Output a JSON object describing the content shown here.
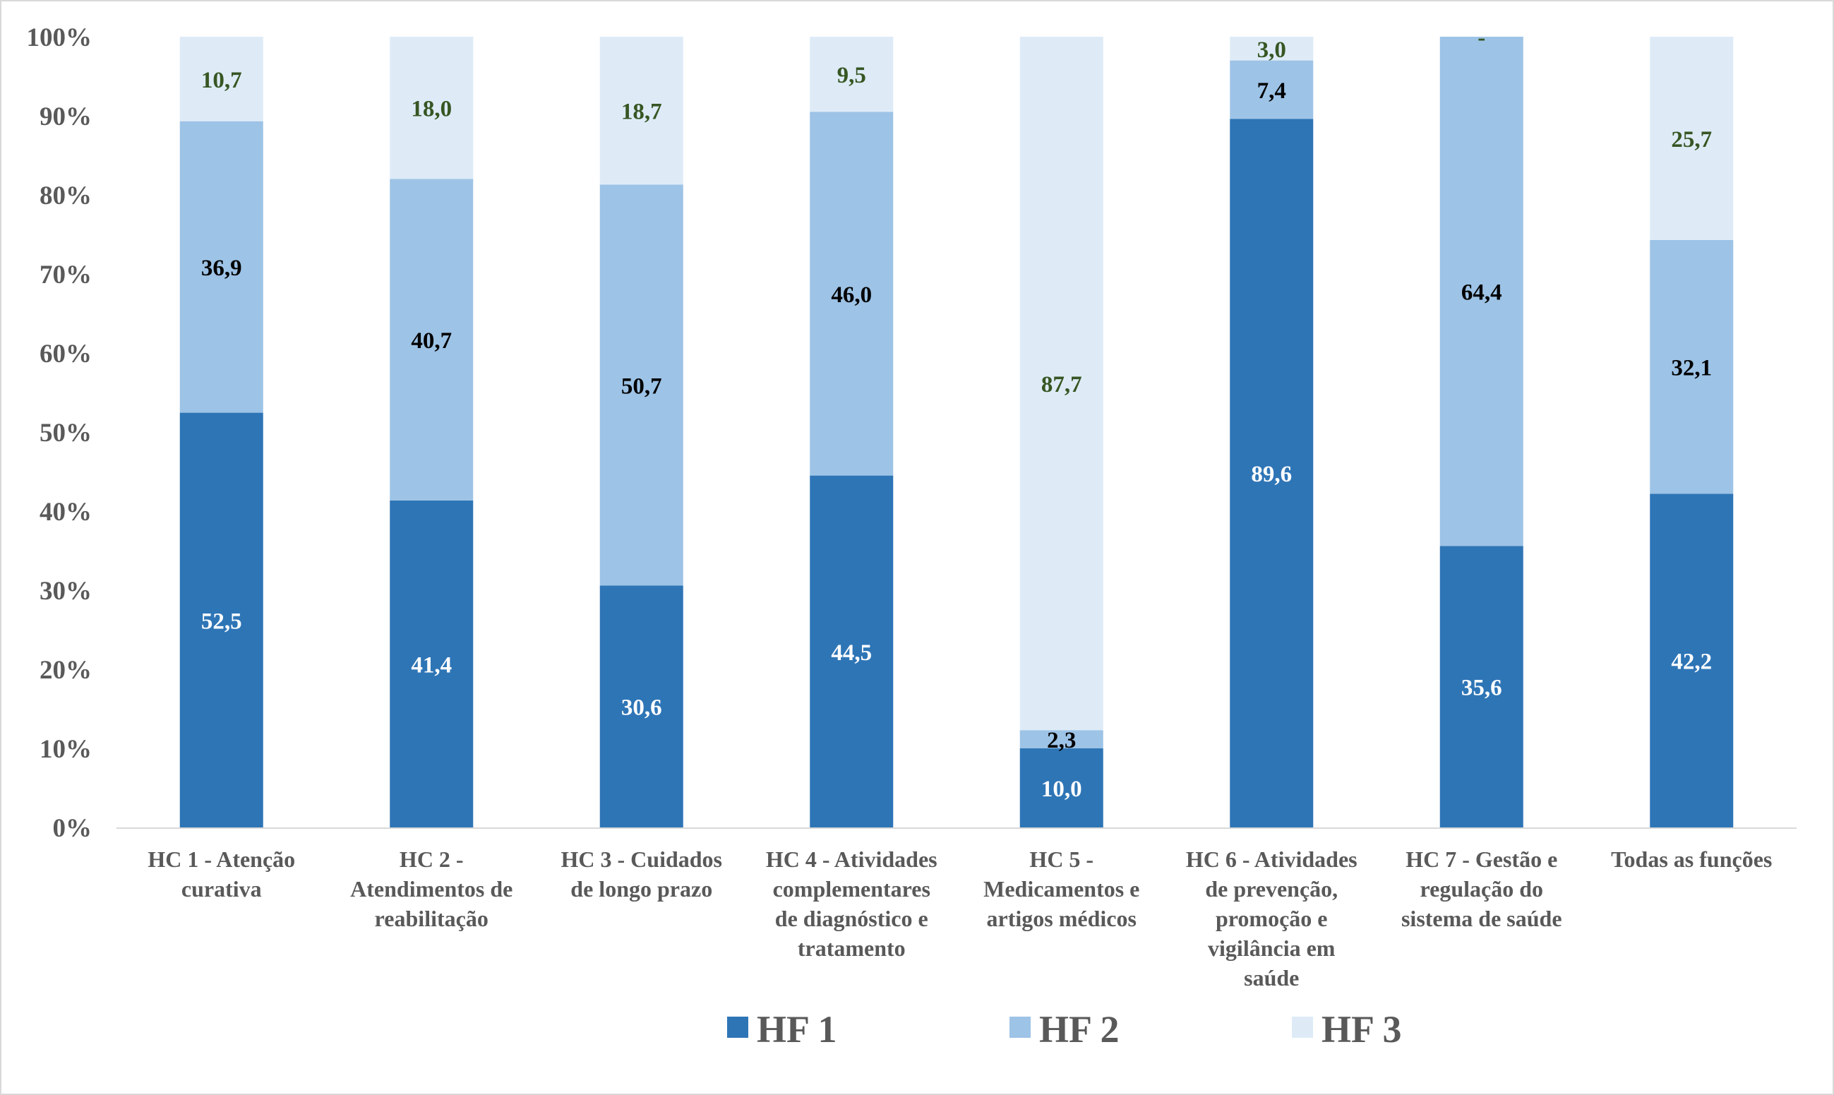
{
  "chart_data": {
    "type": "bar",
    "stacked": true,
    "percent_stacked": true,
    "categories": [
      [
        "HC 1 - Atenção",
        "curativa"
      ],
      [
        "HC 2 -",
        "Atendimentos de",
        "reabilitação"
      ],
      [
        "HC 3 - Cuidados",
        "de longo prazo"
      ],
      [
        "HC 4 - Atividades",
        "complementares",
        "de diagnóstico e",
        "tratamento"
      ],
      [
        "HC 5 -",
        "Medicamentos e",
        "artigos médicos"
      ],
      [
        "HC 6 - Atividades",
        "de prevenção,",
        "promoção e",
        "vigilância em",
        "saúde"
      ],
      [
        "HC 7 - Gestão e",
        "regulação do",
        "sistema de saúde"
      ],
      [
        "Todas as funções"
      ]
    ],
    "series": [
      {
        "name": "HF 1",
        "color": "#2e75b6",
        "label_color": "#ffffff",
        "values": [
          52.5,
          41.4,
          30.6,
          44.5,
          10.0,
          89.6,
          35.6,
          42.2
        ],
        "labels": [
          "52,5",
          "41,4",
          "30,6",
          "44,5",
          "10,0",
          "89,6",
          "35,6",
          "42,2"
        ]
      },
      {
        "name": "HF 2",
        "color": "#9dc3e6",
        "label_color": "#000000",
        "values": [
          36.9,
          40.7,
          50.7,
          46.0,
          2.3,
          7.4,
          64.4,
          32.1
        ],
        "labels": [
          "36,9",
          "40,7",
          "50,7",
          "46,0",
          "2,3",
          "7,4",
          "64,4",
          "32,1"
        ]
      },
      {
        "name": "HF 3",
        "color": "#deebf7",
        "label_color": "#375623",
        "values": [
          10.7,
          18.0,
          18.7,
          9.5,
          87.7,
          3.0,
          0.0,
          25.7
        ],
        "labels": [
          "10,7",
          "18,0",
          "18,7",
          "9,5",
          "87,7",
          "3,0",
          "-",
          "25,7"
        ]
      }
    ],
    "y_ticks": [
      "0%",
      "10%",
      "20%",
      "30%",
      "40%",
      "50%",
      "60%",
      "70%",
      "80%",
      "90%",
      "100%"
    ],
    "ylim": [
      0,
      100
    ],
    "grid": false,
    "legend_position": "bottom"
  }
}
